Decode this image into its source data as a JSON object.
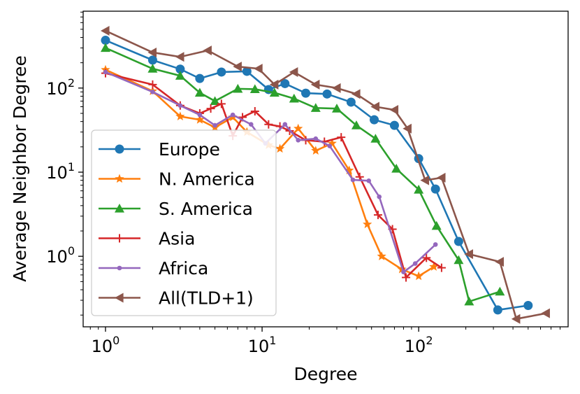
{
  "chart_data": {
    "type": "line",
    "xlabel": "Degree",
    "ylabel": "Average Neighbor Degree",
    "xscale": "log",
    "yscale": "log",
    "xlim": [
      0.72,
      900
    ],
    "ylim": [
      0.145,
      820
    ],
    "grid": false,
    "legend_position": "lower-left",
    "x_ticks": [
      {
        "value": 1,
        "base": "10",
        "exp": "0"
      },
      {
        "value": 10,
        "base": "10",
        "exp": "1"
      },
      {
        "value": 100,
        "base": "10",
        "exp": "2"
      }
    ],
    "y_ticks": [
      {
        "value": 1,
        "base": "10",
        "exp": "0"
      },
      {
        "value": 10,
        "base": "10",
        "exp": "1"
      },
      {
        "value": 100,
        "base": "10",
        "exp": "2"
      }
    ],
    "series": [
      {
        "name": "Europe",
        "color": "#1f77b4",
        "marker": "circle",
        "x": [
          1,
          2,
          3,
          4,
          5.5,
          8,
          11,
          14,
          19,
          26,
          37,
          52,
          70,
          100,
          128,
          180,
          320,
          500
        ],
        "y": [
          370,
          215,
          168,
          130,
          155,
          158,
          96,
          113,
          87,
          85,
          68,
          42,
          36,
          14.5,
          6.3,
          1.5,
          0.23,
          0.26
        ]
      },
      {
        "name": "N. America",
        "color": "#ff7f0e",
        "marker": "star",
        "x": [
          1,
          2,
          3,
          4,
          5,
          6.5,
          8,
          11,
          13,
          17,
          22,
          28,
          36,
          47,
          58,
          78,
          100,
          125
        ],
        "y": [
          165,
          92,
          46,
          42,
          34,
          45,
          30,
          21,
          19,
          33,
          18,
          22,
          10.5,
          2.4,
          1.0,
          0.7,
          0.58,
          0.75
        ]
      },
      {
        "name": "S. America",
        "color": "#2ca02c",
        "marker": "triangle-up",
        "x": [
          1,
          2,
          3,
          4,
          5,
          7,
          9,
          12,
          16,
          22,
          30,
          40,
          53,
          72,
          100,
          130,
          180,
          210,
          330
        ],
        "y": [
          300,
          170,
          140,
          88,
          70,
          98,
          97,
          88,
          75,
          58,
          57,
          36,
          25,
          11,
          6.2,
          2.3,
          0.9,
          0.29,
          0.38
        ]
      },
      {
        "name": "Asia",
        "color": "#d62728",
        "marker": "plus",
        "x": [
          1,
          2,
          3,
          4,
          4.7,
          5.5,
          6.5,
          7.5,
          9,
          11,
          13,
          15,
          19,
          25,
          32,
          42,
          55,
          68,
          83,
          112,
          140
        ],
        "y": [
          150,
          110,
          62,
          50,
          57,
          65,
          27,
          45,
          53,
          37,
          35,
          31,
          24,
          23,
          26,
          8.8,
          3.1,
          2.1,
          0.56,
          0.96,
          0.73
        ]
      },
      {
        "name": "Africa",
        "color": "#9467bd",
        "marker": "dot",
        "x": [
          1,
          2,
          3,
          4,
          5,
          6.5,
          8.5,
          10.5,
          14,
          17,
          22,
          27,
          38,
          48,
          56,
          80,
          95,
          128
        ],
        "y": [
          155,
          90,
          62,
          48,
          36,
          48,
          37,
          22,
          37,
          24,
          25,
          20.5,
          8.1,
          7.9,
          5.1,
          0.65,
          0.82,
          1.38
        ]
      },
      {
        "name": "All(TLD+1)",
        "color": "#8c564b",
        "marker": "triangle-left",
        "x": [
          1,
          2,
          3,
          4.5,
          7,
          9.5,
          12,
          16,
          22,
          30,
          40,
          53,
          70,
          85,
          110,
          140,
          210,
          330,
          420,
          650
        ],
        "y": [
          480,
          265,
          235,
          280,
          180,
          170,
          110,
          155,
          110,
          100,
          85,
          60,
          55,
          33,
          8,
          8.6,
          1.06,
          0.86,
          0.18,
          0.21
        ]
      }
    ]
  }
}
